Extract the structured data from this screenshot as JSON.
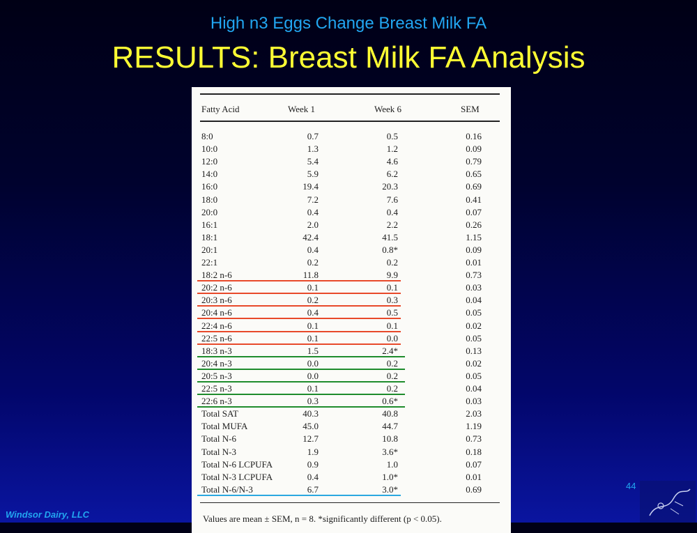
{
  "header": {
    "subtitle": "High n3 Eggs Change Breast Milk FA",
    "title": "RESULTS: Breast Milk FA Analysis"
  },
  "table": {
    "columns": [
      "Fatty Acid",
      "Week 1",
      "Week 6",
      "SEM"
    ],
    "rows": [
      {
        "fa": "8:0",
        "w1": "0.7",
        "w6": "0.5",
        "sem": "0.16",
        "mark": ""
      },
      {
        "fa": "10:0",
        "w1": "1.3",
        "w6": "1.2",
        "sem": "0.09",
        "mark": ""
      },
      {
        "fa": "12:0",
        "w1": "5.4",
        "w6": "4.6",
        "sem": "0.79",
        "mark": ""
      },
      {
        "fa": "14:0",
        "w1": "5.9",
        "w6": "6.2",
        "sem": "0.65",
        "mark": ""
      },
      {
        "fa": "16:0",
        "w1": "19.4",
        "w6": "20.3",
        "sem": "0.69",
        "mark": ""
      },
      {
        "fa": "18:0",
        "w1": "7.2",
        "w6": "7.6",
        "sem": "0.41",
        "mark": ""
      },
      {
        "fa": "20:0",
        "w1": "0.4",
        "w6": "0.4",
        "sem": "0.07",
        "mark": ""
      },
      {
        "fa": "16:1",
        "w1": "2.0",
        "w6": "2.2",
        "sem": "0.26",
        "mark": ""
      },
      {
        "fa": "18:1",
        "w1": "42.4",
        "w6": "41.5",
        "sem": "1.15",
        "mark": ""
      },
      {
        "fa": "20:1",
        "w1": "0.4",
        "w6": "0.8*",
        "sem": "0.09",
        "mark": ""
      },
      {
        "fa": "22:1",
        "w1": "0.2",
        "w6": "0.2",
        "sem": "0.01",
        "mark": ""
      },
      {
        "fa": "18:2 n-6",
        "w1": "11.8",
        "w6": "9.9",
        "sem": "0.73",
        "mark": "n6"
      },
      {
        "fa": "20:2 n-6",
        "w1": "0.1",
        "w6": "0.1",
        "sem": "0.03",
        "mark": "n6"
      },
      {
        "fa": "20:3 n-6",
        "w1": "0.2",
        "w6": "0.3",
        "sem": "0.04",
        "mark": "n6"
      },
      {
        "fa": "20:4 n-6",
        "w1": "0.4",
        "w6": "0.5",
        "sem": "0.05",
        "mark": "n6"
      },
      {
        "fa": "22:4 n-6",
        "w1": "0.1",
        "w6": "0.1",
        "sem": "0.02",
        "mark": "n6"
      },
      {
        "fa": "22:5 n-6",
        "w1": "0.1",
        "w6": "0.0",
        "sem": "0.05",
        "mark": "n6"
      },
      {
        "fa": "18:3 n-3",
        "w1": "1.5",
        "w6": "2.4*",
        "sem": "0.13",
        "mark": "n3"
      },
      {
        "fa": "20:4 n-3",
        "w1": "0.0",
        "w6": "0.2",
        "sem": "0.02",
        "mark": "n3"
      },
      {
        "fa": "20:5 n-3",
        "w1": "0.0",
        "w6": "0.2",
        "sem": "0.05",
        "mark": "n3"
      },
      {
        "fa": "22:5 n-3",
        "w1": "0.1",
        "w6": "0.2",
        "sem": "0.04",
        "mark": "n3"
      },
      {
        "fa": "22:6 n-3",
        "w1": "0.3",
        "w6": "0.6*",
        "sem": "0.03",
        "mark": "n3"
      },
      {
        "fa": "Total SAT",
        "w1": "40.3",
        "w6": "40.8",
        "sem": "2.03",
        "mark": ""
      },
      {
        "fa": "Total MUFA",
        "w1": "45.0",
        "w6": "44.7",
        "sem": "1.19",
        "mark": ""
      },
      {
        "fa": "Total N-6",
        "w1": "12.7",
        "w6": "10.8",
        "sem": "0.73",
        "mark": ""
      },
      {
        "fa": "Total N-3",
        "w1": "1.9",
        "w6": "3.6*",
        "sem": "0.18",
        "mark": ""
      },
      {
        "fa": "Total N-6 LCPUFA",
        "w1": "0.9",
        "w6": "1.0",
        "sem": "0.07",
        "mark": ""
      },
      {
        "fa": "Total N-3 LCPUFA",
        "w1": "0.4",
        "w6": "1.0*",
        "sem": "0.01",
        "mark": ""
      },
      {
        "fa": "Total N-6/N-3",
        "w1": "6.7",
        "w6": "3.0*",
        "sem": "0.69",
        "mark": "ratio"
      }
    ],
    "footnote": "Values are mean ± SEM, n = 8. *significantly different (p < 0.05)."
  },
  "colors": {
    "n6": "#e8492a",
    "n3": "#1e8c2c",
    "ratio": "#2aa8e0"
  },
  "footer": {
    "page_number": "44",
    "company": "Windsor Dairy, LLC"
  }
}
